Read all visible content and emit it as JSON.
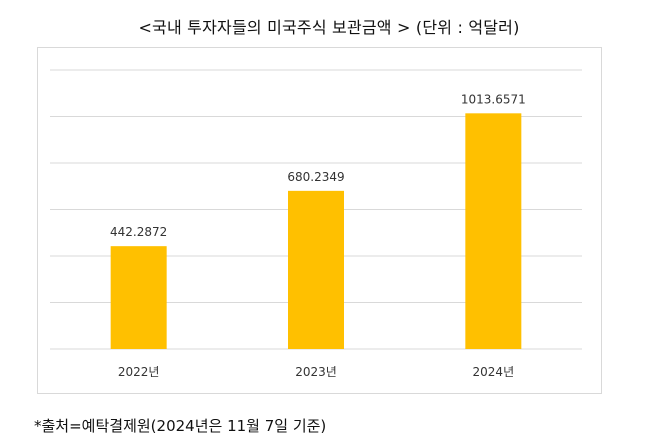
{
  "title": "<국내 투자자들의 미국주식 보관금액 > (단위 : 억달러)",
  "source": "*출처=예탁결제원(2024년은 11월 7일 기준)",
  "colors": {
    "bar": "#FFC000",
    "grid": "#d9d9d9",
    "text": "#333333"
  },
  "chart_data": {
    "type": "bar",
    "title": "<국내 투자자들의 미국주식 보관금액 > (단위 : 억달러)",
    "categories": [
      "2022년",
      "2023년",
      "2024년"
    ],
    "values": [
      442.2872,
      680.2349,
      1013.6571
    ],
    "value_labels": [
      "442.2872",
      "680.2349",
      "1013.6571"
    ],
    "xlabel": "",
    "ylabel": "",
    "ylim": [
      0,
      1200
    ],
    "grid": true,
    "legend": "none"
  }
}
